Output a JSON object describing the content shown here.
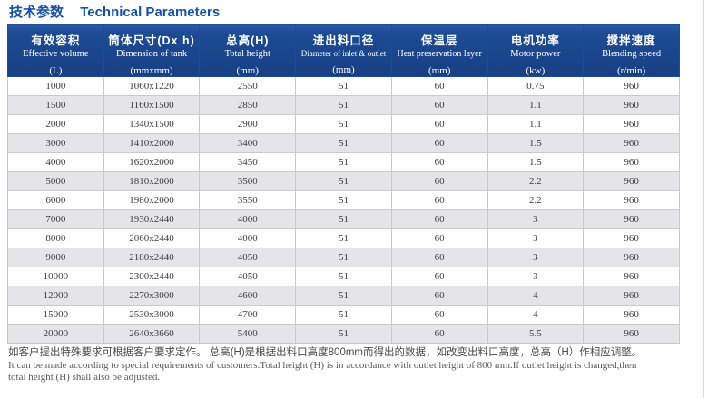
{
  "title": {
    "zh": "技术参数",
    "en": "Technical Parameters"
  },
  "colors": {
    "header_bg": "#1d4b94",
    "title_blue": "#1551a6",
    "row_alt_gray": "#e5e5e7",
    "grid_line": "#c9c9c9"
  },
  "table": {
    "columns": [
      {
        "zh": "有效容积",
        "en": "Effective volume",
        "unit": "(L)"
      },
      {
        "zh": "筒体尺寸(Dx h)",
        "en": "Dimension of tank",
        "unit": "(mmxmm)"
      },
      {
        "zh": "总高(H)",
        "en": "Total height",
        "unit": "(mm)"
      },
      {
        "zh": "进出料口径",
        "en": "Diameter of inlet & outlet",
        "unit": "(mm)"
      },
      {
        "zh": "保温层",
        "en": "Heat preservation layer",
        "unit": "(mm)"
      },
      {
        "zh": "电机功率",
        "en": "Motor power",
        "unit": "(kw)"
      },
      {
        "zh": "搅拌速度",
        "en": "Blending speed",
        "unit": "(r/min)"
      }
    ],
    "rows": [
      [
        "1000",
        "1060x1220",
        "2550",
        "51",
        "60",
        "0.75",
        "960"
      ],
      [
        "1500",
        "1160x1500",
        "2850",
        "51",
        "60",
        "1.1",
        "960"
      ],
      [
        "2000",
        "1340x1500",
        "2900",
        "51",
        "60",
        "1.1",
        "960"
      ],
      [
        "3000",
        "1410x2000",
        "3400",
        "51",
        "60",
        "1.5",
        "960"
      ],
      [
        "4000",
        "1620x2000",
        "3450",
        "51",
        "60",
        "1.5",
        "960"
      ],
      [
        "5000",
        "1810x2000",
        "3500",
        "51",
        "60",
        "2.2",
        "960"
      ],
      [
        "6000",
        "1980x2000",
        "3550",
        "51",
        "60",
        "2.2",
        "960"
      ],
      [
        "7000",
        "1930x2440",
        "4000",
        "51",
        "60",
        "3",
        "960"
      ],
      [
        "8000",
        "2060x2440",
        "4000",
        "51",
        "60",
        "3",
        "960"
      ],
      [
        "9000",
        "2180x2440",
        "4050",
        "51",
        "60",
        "3",
        "960"
      ],
      [
        "10000",
        "2300x2440",
        "4050",
        "51",
        "60",
        "3",
        "960"
      ],
      [
        "12000",
        "2270x3000",
        "4600",
        "51",
        "60",
        "4",
        "960"
      ],
      [
        "15000",
        "2530x3000",
        "4700",
        "51",
        "60",
        "4",
        "960"
      ],
      [
        "20000",
        "2640x3660",
        "5400",
        "51",
        "60",
        "5.5",
        "960"
      ]
    ]
  },
  "footnote": {
    "zh": "如客户提出特殊要求可根据客户要求定作。 总高(H)是根据出料口高度800mm而得出的数据，如改变出料口高度，总高（H）作相应调整。",
    "en_line1": "It can be made according to special requirements of customers.Total height (H) is in accordance with outlet height of 800 mm.If outlet height is changed,then",
    "en_line2": "total height (H) shall also be adjusted."
  }
}
